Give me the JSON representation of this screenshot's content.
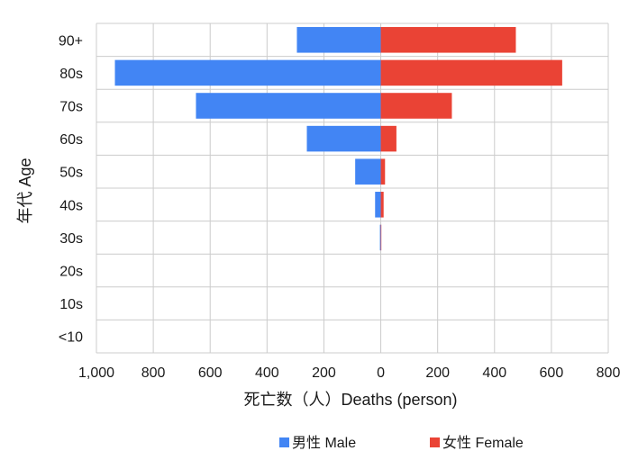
{
  "chart_data": {
    "type": "bar",
    "orientation": "horizontal-population-pyramid",
    "categories": [
      "90+",
      "80s",
      "70s",
      "60s",
      "50s",
      "40s",
      "30s",
      "20s",
      "10s",
      "<10"
    ],
    "series": [
      {
        "name": "男性 Male",
        "color": "#4285f4",
        "values": [
          295,
          935,
          650,
          260,
          90,
          20,
          3,
          0,
          0,
          0
        ]
      },
      {
        "name": "女性 Female",
        "color": "#ea4335",
        "values": [
          475,
          638,
          250,
          55,
          15,
          10,
          2,
          0,
          0,
          0
        ]
      }
    ],
    "xlabel": "死亡数（人）Deaths (person)",
    "ylabel": "年代 Age",
    "xlim": [
      -1000,
      800
    ],
    "x_ticks": [
      {
        "value": -1000,
        "label": "1,000"
      },
      {
        "value": -800,
        "label": "800"
      },
      {
        "value": -600,
        "label": "600"
      },
      {
        "value": -400,
        "label": "400"
      },
      {
        "value": -200,
        "label": "200"
      },
      {
        "value": 0,
        "label": "0"
      },
      {
        "value": 200,
        "label": "200"
      },
      {
        "value": 400,
        "label": "400"
      },
      {
        "value": 600,
        "label": "600"
      },
      {
        "value": 800,
        "label": "800"
      }
    ],
    "grid": true,
    "legend_position": "bottom"
  }
}
